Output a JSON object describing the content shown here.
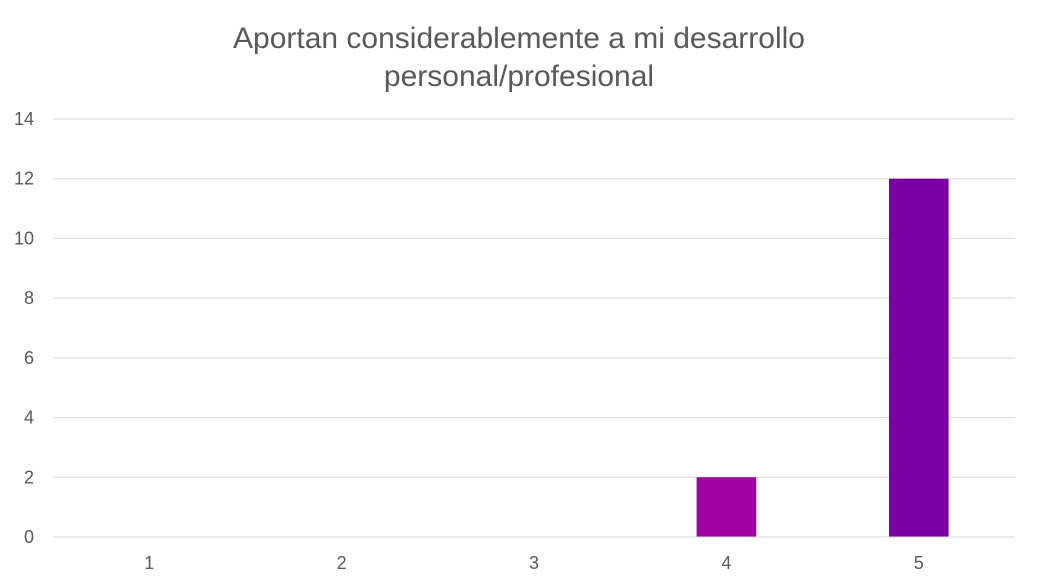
{
  "chart_data": {
    "type": "bar",
    "title_lines": [
      "Aportan considerablemente a mi desarrollo",
      "personal/profesional"
    ],
    "categories": [
      "1",
      "2",
      "3",
      "4",
      "5"
    ],
    "values": [
      0,
      0,
      0,
      2,
      12
    ],
    "bar_colors": [
      "#a000a0",
      "#a000a0",
      "#a000a0",
      "#a000a0",
      "#7b00a4"
    ],
    "ylim": [
      0,
      14
    ],
    "yticks": [
      0,
      2,
      4,
      6,
      8,
      10,
      12,
      14
    ],
    "grid": true,
    "legend": "none"
  }
}
